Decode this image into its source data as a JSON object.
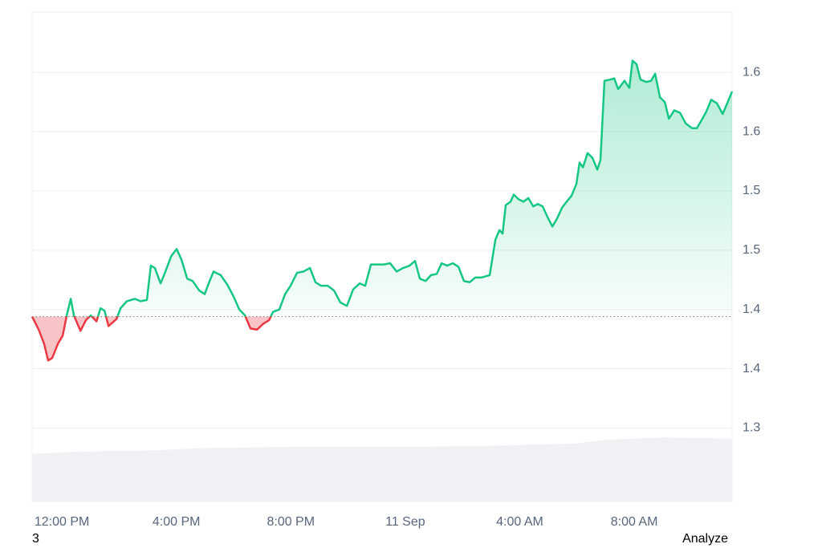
{
  "chart_data": {
    "type": "line",
    "x": [
      10.96,
      11.19,
      11.38,
      11.52,
      11.66,
      11.86,
      12.03,
      12.17,
      12.31,
      12.42,
      12.65,
      12.84,
      13.01,
      13.21,
      13.35,
      13.49,
      13.63,
      13.91,
      14.05,
      14.27,
      14.55,
      14.75,
      14.97,
      15.11,
      15.25,
      15.45,
      15.62,
      15.82,
      16.01,
      16.18,
      16.38,
      16.57,
      16.8,
      16.99,
      17.13,
      17.3,
      17.55,
      17.78,
      18.0,
      18.2,
      18.4,
      18.59,
      18.82,
      19.04,
      19.24,
      19.38,
      19.6,
      19.8,
      19.99,
      20.22,
      20.44,
      20.67,
      20.86,
      21.06,
      21.29,
      21.51,
      21.73,
      21.96,
      22.18,
      22.41,
      22.6,
      22.8,
      23.02,
      23.25,
      23.47,
      23.7,
      23.92,
      24.15,
      24.34,
      24.51,
      24.71,
      24.9,
      25.1,
      25.27,
      25.46,
      25.66,
      25.86,
      26.05,
      26.25,
      26.45,
      26.67,
      26.95,
      27.15,
      27.29,
      27.4,
      27.51,
      27.68,
      27.79,
      27.96,
      28.13,
      28.3,
      28.47,
      28.63,
      28.8,
      28.97,
      29.14,
      29.31,
      29.48,
      29.64,
      29.81,
      29.98,
      30.09,
      30.21,
      30.37,
      30.54,
      30.71,
      30.82,
      30.96,
      31.16,
      31.3,
      31.44,
      31.66,
      31.83,
      31.94,
      32.08,
      32.22,
      32.42,
      32.59,
      32.73,
      32.9,
      33.07,
      33.21,
      33.4,
      33.6,
      33.8,
      34.02,
      34.19,
      34.36,
      34.52,
      34.69,
      34.89,
      35.09,
      35.25,
      35.42
    ],
    "series": [
      {
        "name": "price",
        "color": "#16c784",
        "down_color": "#ea3943",
        "values": [
          1.414,
          1.403,
          1.391,
          1.377,
          1.379,
          1.391,
          1.398,
          1.415,
          1.429,
          1.415,
          1.402,
          1.411,
          1.415,
          1.41,
          1.421,
          1.419,
          1.406,
          1.412,
          1.421,
          1.427,
          1.429,
          1.427,
          1.428,
          1.457,
          1.455,
          1.442,
          1.452,
          1.465,
          1.471,
          1.462,
          1.446,
          1.444,
          1.436,
          1.433,
          1.442,
          1.452,
          1.449,
          1.441,
          1.431,
          1.42,
          1.415,
          1.404,
          1.403,
          1.408,
          1.411,
          1.418,
          1.42,
          1.433,
          1.44,
          1.451,
          1.452,
          1.455,
          1.443,
          1.44,
          1.44,
          1.436,
          1.426,
          1.423,
          1.437,
          1.442,
          1.44,
          1.458,
          1.458,
          1.458,
          1.459,
          1.452,
          1.455,
          1.457,
          1.461,
          1.446,
          1.444,
          1.449,
          1.45,
          1.459,
          1.457,
          1.459,
          1.456,
          1.444,
          1.443,
          1.447,
          1.447,
          1.449,
          1.479,
          1.487,
          1.484,
          1.508,
          1.511,
          1.517,
          1.513,
          1.511,
          1.514,
          1.507,
          1.509,
          1.507,
          1.498,
          1.49,
          1.497,
          1.506,
          1.511,
          1.516,
          1.526,
          1.544,
          1.54,
          1.552,
          1.548,
          1.538,
          1.546,
          1.613,
          1.614,
          1.615,
          1.606,
          1.613,
          1.607,
          1.63,
          1.627,
          1.614,
          1.612,
          1.613,
          1.619,
          1.599,
          1.595,
          1.581,
          1.588,
          1.586,
          1.577,
          1.573,
          1.573,
          1.58,
          1.587,
          1.597,
          1.594,
          1.585,
          1.594,
          1.604
        ]
      }
    ],
    "volume": {
      "color": "#eff1f5",
      "x": [
        10.96,
        12.5,
        15,
        17,
        20,
        24,
        27,
        30,
        31,
        33,
        35.42
      ],
      "values": [
        1.298,
        1.3,
        1.301,
        1.303,
        1.304,
        1.304,
        1.305,
        1.307,
        1.31,
        1.312,
        1.311
      ]
    },
    "baseline": 1.414,
    "xlim": [
      10.96,
      35.42
    ],
    "xticks": [
      {
        "value": 12,
        "label": "12:00 PM"
      },
      {
        "value": 16,
        "label": "4:00 PM"
      },
      {
        "value": 20,
        "label": "8:00 PM"
      },
      {
        "value": 24,
        "label": "11 Sep"
      },
      {
        "value": 28,
        "label": "4:00 AM"
      },
      {
        "value": 32,
        "label": "8:00 AM"
      }
    ],
    "ylim": [
      1.258,
      1.671
    ],
    "yticks": [
      {
        "value": 1.62,
        "label": "1.6"
      },
      {
        "value": 1.57,
        "label": "1.6"
      },
      {
        "value": 1.52,
        "label": "1.5"
      },
      {
        "value": 1.47,
        "label": "1.5"
      },
      {
        "value": 1.42,
        "label": "1.4"
      },
      {
        "value": 1.37,
        "label": "1.4"
      },
      {
        "value": 1.32,
        "label": "1.3"
      }
    ],
    "grid": true,
    "footer_left": "3",
    "footer_right": "Analyze"
  }
}
